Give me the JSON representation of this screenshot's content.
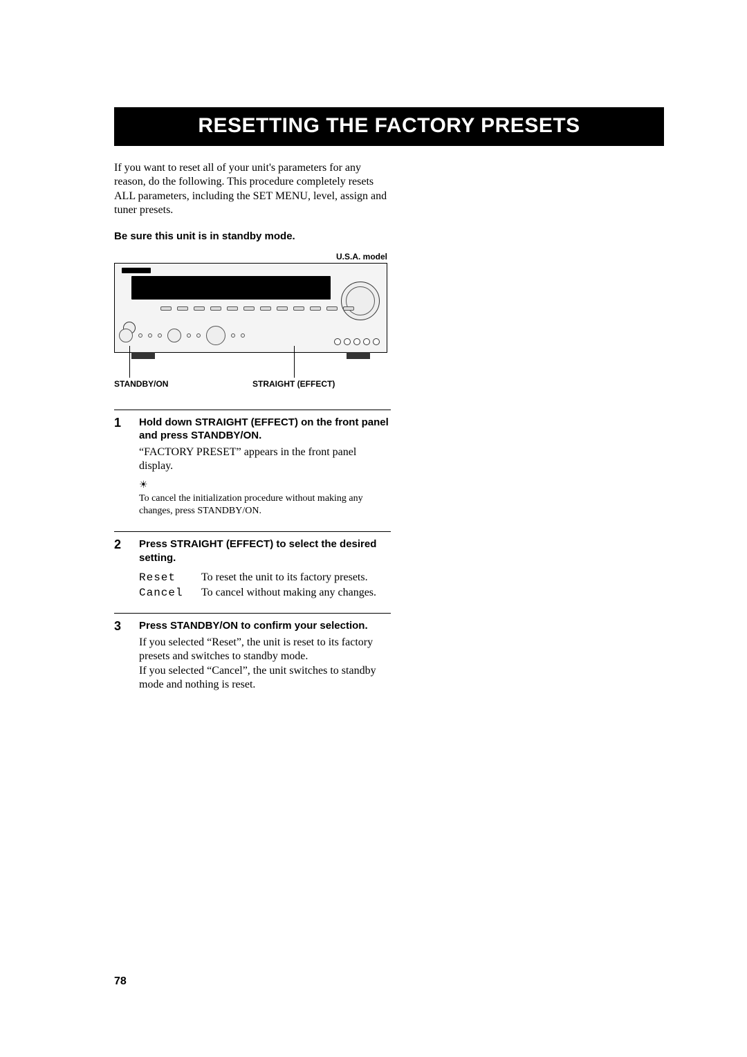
{
  "title": "RESETTING THE FACTORY PRESETS",
  "intro": "If you want to reset all of your unit's parameters for any reason, do the following. This procedure completely resets ALL parameters, including the SET MENU, level, assign and tuner presets.",
  "standby_note": "Be sure this unit is in standby mode.",
  "figure": {
    "model_label": "U.S.A. model",
    "callout_standby": "STANDBY/ON",
    "callout_straight": "STRAIGHT (EFFECT)"
  },
  "steps": [
    {
      "num": "1",
      "head": "Hold down STRAIGHT (EFFECT) on the front panel and press STANDBY/ON.",
      "para": "“FACTORY PRESET” appears in the front panel display.",
      "tip_icon": "☀︎",
      "tip": "To cancel the initialization procedure without making any changes, press STANDBY/ON."
    },
    {
      "num": "2",
      "head": "Press STRAIGHT (EFFECT) to select the desired setting.",
      "options": [
        {
          "name": "Reset",
          "desc": "To reset the unit to its factory presets."
        },
        {
          "name": "Cancel",
          "desc": "To cancel without making any changes."
        }
      ]
    },
    {
      "num": "3",
      "head": "Press STANDBY/ON to confirm your selection.",
      "para": "If you selected “Reset”, the unit is reset to its factory presets and switches to standby mode.\nIf you selected “Cancel”, the unit switches to standby mode and nothing is reset."
    }
  ],
  "page_number": "78",
  "colors": {
    "title_bg": "#000000",
    "title_fg": "#ffffff",
    "text": "#000000",
    "page_bg": "#ffffff",
    "rule": "#000000"
  },
  "typography": {
    "title_fontsize": 30,
    "body_fontsize": 16,
    "bold_label_fontsize": 15,
    "small_bold_fontsize": 12,
    "tip_fontsize": 14,
    "step_num_fontsize": 18,
    "page_num_fontsize": 16
  }
}
